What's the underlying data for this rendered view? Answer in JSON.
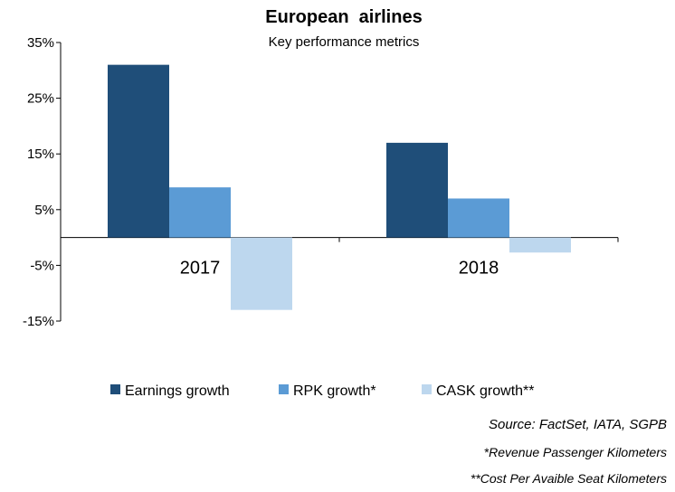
{
  "chart_data": {
    "type": "bar",
    "title": "European  airlines",
    "subtitle": "Key performance metrics",
    "categories": [
      "2017",
      "2018"
    ],
    "series": [
      {
        "name": "Earnings growth",
        "values": [
          31,
          17
        ],
        "color": "#1f4e79"
      },
      {
        "name": "RPK growth*",
        "values": [
          9,
          7
        ],
        "color": "#5b9bd5"
      },
      {
        "name": "CASK growth**",
        "values": [
          -13,
          -2.7
        ],
        "color": "#bdd7ee"
      }
    ],
    "ylim": [
      -15,
      35
    ],
    "yticks": [
      35,
      25,
      15,
      5,
      -5,
      -15
    ],
    "ytick_labels": [
      "35%",
      "25%",
      "15%",
      "5%",
      "-5%",
      "-15%"
    ],
    "grid": false,
    "legend": "bottom",
    "footnotes": [
      "Source: FactSet, IATA, SGPB",
      "*Revenue Passenger Kilometers",
      "**Cost Per Avaible Seat Kilometers"
    ]
  }
}
